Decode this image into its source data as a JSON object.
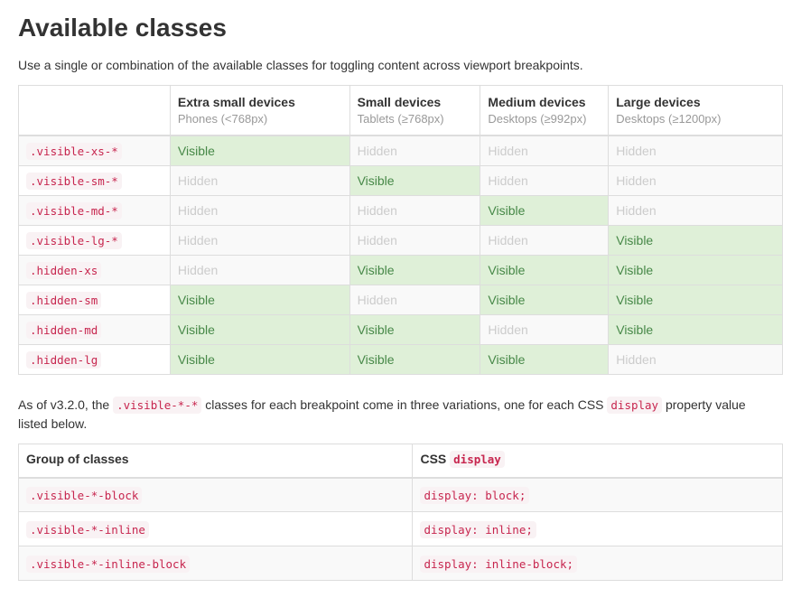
{
  "page": {
    "title": "Available classes",
    "intro": "Use a single or combination of the available classes for toggling content across viewport breakpoints."
  },
  "colors": {
    "visible_bg": "#dff0d8",
    "visible_text": "#468847",
    "hidden_bg": "#f9f9f9",
    "hidden_text": "#cccccc",
    "code_text": "#c7254e",
    "code_bg": "#f9f2f4",
    "border": "#dddddd",
    "muted": "#999999"
  },
  "utilities_table": {
    "headers": [
      {
        "title": "",
        "subtitle": ""
      },
      {
        "title": "Extra small devices",
        "subtitle": "Phones (<768px)"
      },
      {
        "title": "Small devices",
        "subtitle": "Tablets (≥768px)"
      },
      {
        "title": "Medium devices",
        "subtitle": "Desktops (≥992px)"
      },
      {
        "title": "Large devices",
        "subtitle": "Desktops (≥1200px)"
      }
    ],
    "visible_label": "Visible",
    "hidden_label": "Hidden",
    "rows": [
      {
        "class": ".visible-xs-*",
        "cells": [
          "visible",
          "hidden",
          "hidden",
          "hidden"
        ]
      },
      {
        "class": ".visible-sm-*",
        "cells": [
          "hidden",
          "visible",
          "hidden",
          "hidden"
        ]
      },
      {
        "class": ".visible-md-*",
        "cells": [
          "hidden",
          "hidden",
          "visible",
          "hidden"
        ]
      },
      {
        "class": ".visible-lg-*",
        "cells": [
          "hidden",
          "hidden",
          "hidden",
          "visible"
        ]
      },
      {
        "class": ".hidden-xs",
        "cells": [
          "hidden",
          "visible",
          "visible",
          "visible"
        ]
      },
      {
        "class": ".hidden-sm",
        "cells": [
          "visible",
          "hidden",
          "visible",
          "visible"
        ]
      },
      {
        "class": ".hidden-md",
        "cells": [
          "visible",
          "visible",
          "hidden",
          "visible"
        ]
      },
      {
        "class": ".hidden-lg",
        "cells": [
          "visible",
          "visible",
          "visible",
          "hidden"
        ]
      }
    ]
  },
  "variations_note": {
    "before": "As of v3.2.0, the ",
    "code1": ".visible-*-*",
    "middle": " classes for each breakpoint come in three variations, one for each CSS ",
    "code2": "display",
    "after": " property value listed below."
  },
  "display_table": {
    "col1_header": "Group of classes",
    "col2_header_text": "CSS ",
    "col2_header_code": "display",
    "rows": [
      {
        "class": ".visible-*-block",
        "css": "display: block;"
      },
      {
        "class": ".visible-*-inline",
        "css": "display: inline;"
      },
      {
        "class": ".visible-*-inline-block",
        "css": "display: inline-block;"
      }
    ]
  }
}
